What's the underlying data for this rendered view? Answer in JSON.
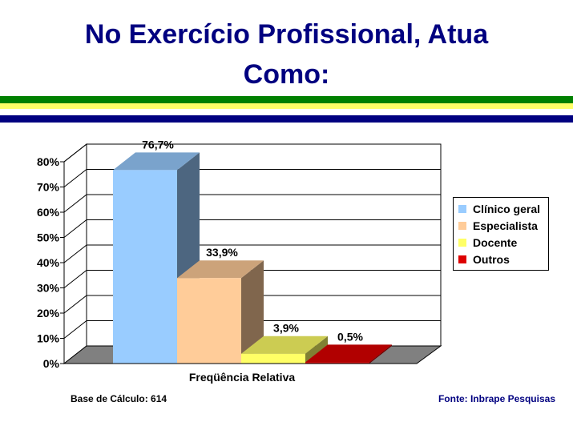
{
  "page": {
    "title_line1": "No Exercício Profissional, Atua",
    "title_line2": "Como:",
    "footer_left": "Base de Cálculo: 614",
    "footer_right": "Fonte: Inbrape Pesquisas"
  },
  "colors": {
    "title": "#000080",
    "stripe_green": "#008000",
    "stripe_yellow": "#ffff66",
    "stripe_navy": "#000080"
  },
  "chart_data": {
    "type": "bar",
    "title": "",
    "xlabel": "Freqüência Relativa",
    "ylabel": "",
    "ylim": [
      0,
      80
    ],
    "yticks": [
      "0%",
      "10%",
      "20%",
      "30%",
      "40%",
      "50%",
      "60%",
      "70%",
      "80%"
    ],
    "grid": true,
    "legend_position": "right",
    "series": [
      {
        "name": "Clínico geral",
        "value": 76.7,
        "label": "76,7%",
        "color": "#99ccff"
      },
      {
        "name": "Especialista",
        "value": 33.9,
        "label": "33,9%",
        "color": "#ffcc99"
      },
      {
        "name": "Docente",
        "value": 3.9,
        "label": "3,9%",
        "color": "#ffff66"
      },
      {
        "name": "Outros",
        "value": 0.5,
        "label": "0,5%",
        "color": "#dd0000"
      }
    ]
  }
}
